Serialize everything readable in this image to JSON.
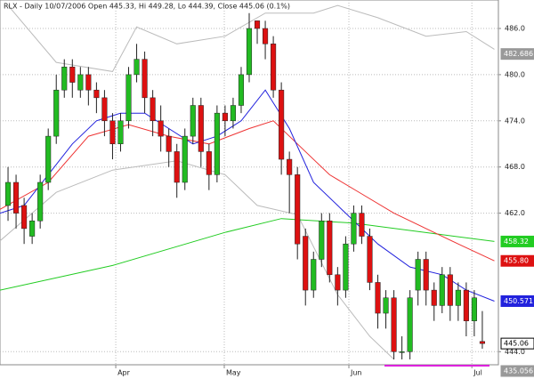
{
  "chart_data": {
    "type": "candlestick",
    "title": "RLX - Daily 10/07/2006 Open 445.33, Hi 449.28, Lo 444.39, Close 445.06 (0.1%)",
    "x": [
      0,
      1,
      2,
      3,
      4,
      5,
      6,
      7,
      8,
      9,
      10,
      11,
      12,
      13,
      14,
      15,
      16,
      17,
      18,
      19,
      20,
      21,
      22,
      23,
      24,
      25,
      26,
      27,
      28,
      29,
      30,
      31,
      32,
      33,
      34,
      35,
      36,
      37,
      38,
      39,
      40,
      41,
      42,
      43,
      44,
      45,
      46,
      47,
      48,
      49,
      50,
      51,
      52,
      53,
      54,
      55,
      56,
      57,
      58,
      59
    ],
    "open": [
      463,
      466,
      463,
      459,
      461,
      466,
      472,
      478,
      481,
      478,
      480,
      478,
      477,
      474,
      471,
      474,
      480,
      482,
      477,
      474,
      472,
      470,
      466,
      472,
      476,
      470,
      467,
      475,
      474,
      476,
      480,
      487,
      486,
      484,
      478,
      469,
      467,
      459,
      452,
      456,
      461,
      454,
      452,
      458,
      462,
      459,
      453,
      449,
      451,
      444,
      444,
      452,
      456,
      452,
      450,
      454,
      450,
      452,
      448,
      445.33
    ],
    "high": [
      468,
      467,
      464,
      462,
      467,
      473,
      480,
      482,
      482,
      481,
      481,
      479,
      478,
      475,
      475,
      481,
      484,
      483,
      478,
      476,
      473,
      471,
      473,
      477,
      477,
      471,
      476,
      476,
      477,
      481,
      488,
      487,
      487,
      485,
      479,
      470,
      468,
      460,
      457,
      462,
      462,
      455,
      459,
      463,
      463,
      460,
      454,
      452,
      452,
      446,
      452,
      457,
      457,
      453,
      455,
      455,
      453,
      453,
      452,
      449.28
    ],
    "low": [
      461,
      460,
      458,
      458,
      460,
      465,
      471,
      477,
      477,
      477,
      476,
      475,
      472,
      469,
      470,
      473,
      479,
      475,
      472,
      470,
      468,
      464,
      465,
      471,
      468,
      465,
      466,
      472,
      473,
      475,
      479,
      484,
      482,
      477,
      467,
      462,
      456,
      450,
      451,
      455,
      453,
      450,
      451,
      457,
      458,
      452,
      447,
      447,
      443,
      443,
      443,
      450,
      450,
      448,
      449,
      448,
      448,
      446,
      446,
      444.39
    ],
    "close": [
      466,
      462,
      460,
      461,
      466,
      472,
      478,
      481,
      479,
      480,
      478,
      477,
      474,
      471,
      474,
      480,
      482,
      477,
      474,
      472,
      470,
      466,
      472,
      476,
      470,
      467,
      475,
      474,
      476,
      480,
      486,
      486,
      484,
      478,
      469,
      467,
      458,
      452,
      456,
      461,
      454,
      452,
      458,
      462,
      459,
      453,
      449,
      451,
      444,
      444,
      451,
      456,
      452,
      450,
      454,
      450,
      452,
      448,
      451,
      445.06
    ],
    "up_color": "#22bb22",
    "down_color": "#dd1111",
    "lines": [
      {
        "color": "#bbbbbb",
        "x": [
          0,
          6,
          13,
          16,
          21,
          27,
          32,
          38,
          41,
          46,
          52,
          57,
          60.5
        ],
        "values": [
          489,
          481.6,
          480.4,
          486.2,
          484,
          485,
          488,
          488,
          489,
          487.4,
          485,
          485.6,
          483.3
        ]
      },
      {
        "color": "#bbbbbb",
        "x": [
          -1,
          6,
          13,
          21,
          27,
          31,
          36,
          41,
          45,
          48
        ],
        "values": [
          458.4,
          464.7,
          467.6,
          468.8,
          467,
          463,
          461.8,
          451.4,
          446,
          443
        ]
      },
      {
        "color": "#22cc22",
        "x": [
          -1,
          13,
          27,
          34,
          43,
          54,
          60.5
        ],
        "values": [
          452,
          455.2,
          459.5,
          461.3,
          460.7,
          459.2,
          458.32
        ]
      },
      {
        "color": "#ee3333",
        "x": [
          -1,
          5,
          10,
          15,
          20,
          25,
          30,
          33,
          36,
          40,
          44,
          48,
          52,
          56,
          60.5
        ],
        "values": [
          462.5,
          466,
          472,
          473.5,
          472,
          471,
          473,
          474,
          471,
          467,
          464.5,
          462,
          460,
          458,
          455.8
        ]
      },
      {
        "color": "#2222dd",
        "x": [
          -1,
          2,
          5,
          8,
          11,
          14,
          17,
          20,
          23,
          26,
          29,
          32,
          35,
          38,
          42,
          46,
          50,
          54,
          57,
          60.5
        ],
        "values": [
          462,
          463,
          467,
          471,
          474,
          475,
          475,
          473,
          471,
          472,
          474,
          478,
          473,
          466,
          462,
          458,
          455,
          454,
          452,
          450.571
        ]
      }
    ],
    "price_tags": [
      {
        "value": 482.686,
        "color": "#999999"
      },
      {
        "value": 458.32,
        "color": "#22cc22"
      },
      {
        "value": 455.8,
        "label": "455.80",
        "color": "#dd1111"
      },
      {
        "value": 450.571,
        "color": "#2222dd"
      },
      {
        "value": 445.06,
        "color": "#000000"
      },
      {
        "value": 435.056,
        "color": "#999999"
      }
    ],
    "xlim": [
      -1,
      61
    ],
    "ylim": [
      442.3,
      489.7
    ],
    "xticks": [
      {
        "value": 13.4,
        "label": "Apr"
      },
      {
        "value": 26.9,
        "label": "May"
      },
      {
        "value": 42.4,
        "label": "Jun"
      },
      {
        "value": 57.7,
        "label": "Jul"
      }
    ],
    "yticks": [
      {
        "value": 486,
        "label": "486.0"
      },
      {
        "value": 480,
        "label": "480.0"
      },
      {
        "value": 474,
        "label": "474.0"
      },
      {
        "value": 468,
        "label": "468.0"
      },
      {
        "value": 462,
        "label": "462.0"
      },
      {
        "value": 444,
        "label": "444.0"
      }
    ],
    "grid": true
  }
}
